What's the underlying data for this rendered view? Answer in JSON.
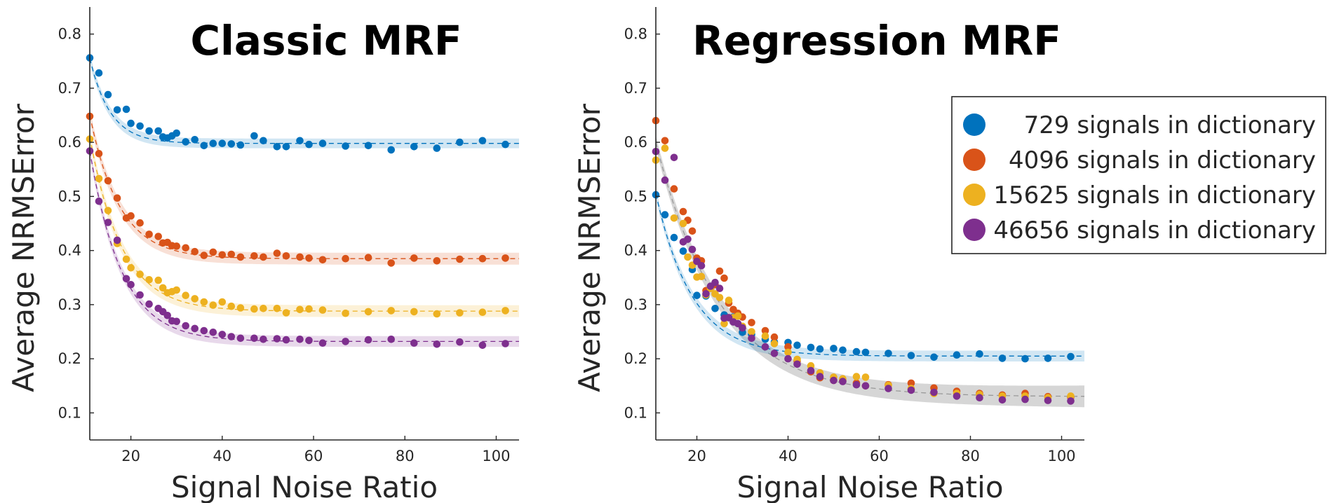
{
  "chart_data": [
    {
      "type": "scatter",
      "title": "Classic MRF",
      "xlabel": "Signal Noise Ratio",
      "ylabel": "Average NRMSError",
      "xlim": [
        11,
        105
      ],
      "ylim": [
        0.05,
        0.85
      ],
      "xticks": [
        "20",
        "40",
        "60",
        "80",
        "100"
      ],
      "yticks": [
        "0.1",
        "0.2",
        "0.3",
        "0.4",
        "0.5",
        "0.6",
        "0.7",
        "0.8"
      ],
      "grid": false,
      "series": [
        {
          "name": "729 signals in dictionary",
          "color": "#0072BD",
          "fit": {
            "asymptote": 0.598,
            "amplitude": 0.157,
            "tau": 4.5,
            "band": 0.009
          },
          "x": [
            11,
            13,
            15,
            17,
            19,
            20,
            22,
            24,
            26,
            27,
            28,
            29,
            30,
            32,
            34,
            36,
            38,
            40,
            42,
            44,
            47,
            49,
            52,
            54,
            57,
            59,
            62,
            67,
            72,
            77,
            82,
            87,
            92,
            97,
            102
          ],
          "y": [
            0.756,
            0.728,
            0.688,
            0.66,
            0.661,
            0.635,
            0.63,
            0.621,
            0.621,
            0.61,
            0.608,
            0.612,
            0.617,
            0.601,
            0.605,
            0.594,
            0.598,
            0.598,
            0.597,
            0.595,
            0.612,
            0.603,
            0.592,
            0.592,
            0.603,
            0.596,
            0.598,
            0.593,
            0.594,
            0.586,
            0.592,
            0.589,
            0.6,
            0.603,
            0.596
          ]
        },
        {
          "name": "4096 signals in dictionary",
          "color": "#D95319",
          "fit": {
            "asymptote": 0.385,
            "amplitude": 0.265,
            "tau": 6.5,
            "band": 0.011
          },
          "x": [
            11,
            13,
            15,
            17,
            19,
            20,
            22,
            24,
            26,
            27,
            28,
            29,
            30,
            32,
            34,
            36,
            38,
            40,
            42,
            44,
            47,
            49,
            52,
            54,
            57,
            59,
            62,
            67,
            72,
            77,
            82,
            87,
            92,
            97,
            102
          ],
          "y": [
            0.648,
            0.579,
            0.529,
            0.497,
            0.46,
            0.464,
            0.451,
            0.43,
            0.426,
            0.414,
            0.415,
            0.409,
            0.408,
            0.405,
            0.398,
            0.391,
            0.397,
            0.392,
            0.393,
            0.388,
            0.39,
            0.388,
            0.395,
            0.39,
            0.388,
            0.386,
            0.383,
            0.385,
            0.387,
            0.377,
            0.386,
            0.381,
            0.384,
            0.385,
            0.386
          ]
        },
        {
          "name": "15625 signals in dictionary",
          "color": "#EDB120",
          "fit": {
            "asymptote": 0.288,
            "amplitude": 0.322,
            "tau": 7.0,
            "band": 0.011
          },
          "x": [
            11,
            13,
            15,
            17,
            19,
            20,
            22,
            24,
            26,
            27,
            28,
            29,
            30,
            32,
            34,
            36,
            38,
            40,
            42,
            44,
            47,
            49,
            52,
            54,
            57,
            59,
            62,
            67,
            72,
            77,
            82,
            87,
            92,
            97,
            102
          ],
          "y": [
            0.606,
            0.533,
            0.474,
            0.413,
            0.384,
            0.368,
            0.356,
            0.346,
            0.345,
            0.331,
            0.322,
            0.324,
            0.327,
            0.317,
            0.311,
            0.305,
            0.299,
            0.305,
            0.297,
            0.294,
            0.292,
            0.293,
            0.293,
            0.285,
            0.291,
            0.292,
            0.29,
            0.284,
            0.287,
            0.289,
            0.287,
            0.283,
            0.285,
            0.286,
            0.289
          ]
        },
        {
          "name": "46656 signals in dictionary",
          "color": "#7E2F8E",
          "fit": {
            "asymptote": 0.232,
            "amplitude": 0.352,
            "tau": 7.0,
            "band": 0.01
          },
          "x": [
            11,
            13,
            15,
            17,
            19,
            20,
            22,
            24,
            26,
            27,
            28,
            29,
            30,
            32,
            34,
            36,
            38,
            40,
            42,
            44,
            47,
            49,
            52,
            54,
            57,
            59,
            62,
            67,
            72,
            77,
            82,
            87,
            92,
            97,
            102
          ],
          "y": [
            0.584,
            0.491,
            0.452,
            0.419,
            0.348,
            0.337,
            0.318,
            0.301,
            0.293,
            0.287,
            0.28,
            0.27,
            0.269,
            0.261,
            0.256,
            0.252,
            0.249,
            0.245,
            0.241,
            0.238,
            0.238,
            0.236,
            0.237,
            0.235,
            0.236,
            0.234,
            0.229,
            0.232,
            0.235,
            0.236,
            0.229,
            0.227,
            0.231,
            0.225,
            0.228
          ]
        }
      ]
    },
    {
      "type": "scatter",
      "title": "Regression MRF",
      "xlabel": "Signal Noise Ratio",
      "ylabel": "Average NRMSError",
      "xlim": [
        11,
        105
      ],
      "ylim": [
        0.05,
        0.85
      ],
      "xticks": [
        "20",
        "40",
        "60",
        "80",
        "100"
      ],
      "yticks": [
        "0.1",
        "0.2",
        "0.3",
        "0.4",
        "0.5",
        "0.6",
        "0.7",
        "0.8"
      ],
      "grid": false,
      "legend": {
        "placement": "top-right",
        "outside": true
      },
      "shared_fit": {
        "color": "#999999",
        "asymptote": 0.13,
        "amplitude": 0.47,
        "tau": 14.0,
        "band_start": 0.012,
        "band_end": 0.02
      },
      "series": [
        {
          "name": "729 signals in dictionary",
          "color": "#0072BD",
          "fit": {
            "asymptote": 0.205,
            "amplitude": 0.3,
            "tau": 8.0,
            "band": 0.01
          },
          "x": [
            11,
            13,
            15,
            17,
            19,
            20,
            22,
            24,
            26,
            28,
            30,
            32,
            35,
            37,
            40,
            42,
            45,
            47,
            50,
            52,
            55,
            57,
            62,
            67,
            72,
            77,
            82,
            87,
            92,
            97,
            102
          ],
          "y": [
            0.503,
            0.466,
            0.424,
            0.399,
            0.365,
            0.317,
            0.316,
            0.293,
            0.281,
            0.277,
            0.249,
            0.245,
            0.236,
            0.231,
            0.23,
            0.225,
            0.221,
            0.218,
            0.219,
            0.216,
            0.213,
            0.212,
            0.21,
            0.206,
            0.203,
            0.207,
            0.209,
            0.201,
            0.2,
            0.201,
            0.204
          ]
        },
        {
          "name": "4096 signals in dictionary",
          "color": "#D95319",
          "fit": {
            "asymptote": 0.13,
            "amplitude": 0.47,
            "tau": 14.0,
            "band": 0.012
          },
          "x": [
            11,
            13,
            15,
            17,
            18,
            19,
            20,
            21,
            22,
            23,
            24,
            25,
            26,
            27,
            28,
            29,
            30,
            32,
            35,
            37,
            40,
            42,
            45,
            47,
            50,
            52,
            55,
            57,
            62,
            67,
            72,
            77,
            82,
            87,
            92,
            97,
            102
          ],
          "y": [
            0.64,
            0.603,
            0.514,
            0.472,
            0.456,
            0.436,
            0.386,
            0.381,
            0.326,
            0.33,
            0.337,
            0.362,
            0.349,
            0.303,
            0.291,
            0.284,
            0.277,
            0.267,
            0.252,
            0.24,
            0.222,
            0.196,
            0.176,
            0.165,
            0.16,
            0.16,
            0.155,
            0.15,
            0.152,
            0.155,
            0.146,
            0.14,
            0.136,
            0.133,
            0.136,
            0.13,
            0.129
          ]
        },
        {
          "name": "15625 signals in dictionary",
          "color": "#EDB120",
          "fit": {
            "asymptote": 0.13,
            "amplitude": 0.47,
            "tau": 14.0,
            "band": 0.012
          },
          "x": [
            11,
            13,
            15,
            17,
            18,
            19,
            20,
            21,
            22,
            23,
            24,
            25,
            26,
            27,
            28,
            29,
            30,
            32,
            35,
            37,
            40,
            42,
            45,
            47,
            50,
            52,
            55,
            57,
            62,
            67,
            72,
            77,
            82,
            87,
            92,
            97,
            102
          ],
          "y": [
            0.567,
            0.589,
            0.46,
            0.45,
            0.388,
            0.373,
            0.351,
            0.352,
            0.318,
            0.33,
            0.32,
            0.313,
            0.265,
            0.308,
            0.276,
            0.279,
            0.26,
            0.25,
            0.242,
            0.228,
            0.212,
            0.199,
            0.187,
            0.174,
            0.166,
            0.163,
            0.167,
            0.166,
            0.151,
            0.145,
            0.136,
            0.136,
            0.134,
            0.131,
            0.131,
            0.128,
            0.131
          ]
        },
        {
          "name": "46656 signals in dictionary",
          "color": "#7E2F8E",
          "fit": {
            "asymptote": 0.128,
            "amplitude": 0.47,
            "tau": 14.0,
            "band": 0.012
          },
          "x": [
            11,
            13,
            15,
            17,
            18,
            19,
            20,
            21,
            22,
            23,
            24,
            25,
            26,
            27,
            28,
            29,
            30,
            32,
            35,
            37,
            40,
            42,
            45,
            47,
            50,
            52,
            55,
            57,
            62,
            67,
            72,
            77,
            82,
            87,
            92,
            97,
            102
          ],
          "y": [
            0.583,
            0.53,
            0.572,
            0.416,
            0.421,
            0.402,
            0.38,
            0.372,
            0.32,
            0.334,
            0.341,
            0.33,
            0.275,
            0.276,
            0.268,
            0.265,
            0.257,
            0.238,
            0.222,
            0.21,
            0.2,
            0.19,
            0.178,
            0.167,
            0.16,
            0.158,
            0.152,
            0.15,
            0.145,
            0.142,
            0.138,
            0.131,
            0.128,
            0.124,
            0.125,
            0.123,
            0.122
          ]
        }
      ]
    }
  ]
}
